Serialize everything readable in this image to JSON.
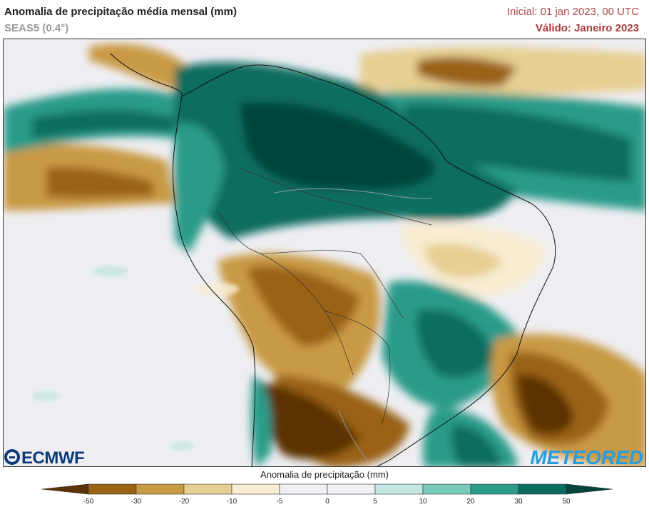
{
  "header": {
    "title": "Anomalia de precipitação média mensal (mm)",
    "subtitle": "SEAS5 (0.4°)",
    "initial": "Inicial: 01 jan 2023, 00 UTC",
    "valid": "Válido: Janeiro 2023"
  },
  "logos": {
    "left": "ECMWF",
    "right": "METEORED"
  },
  "colorbar": {
    "title": "Anomalia de precipitação (mm)",
    "ticks": [
      "-50",
      "-30",
      "-20",
      "-10",
      "-5",
      "0",
      "5",
      "10",
      "20",
      "30",
      "50"
    ],
    "colors": [
      "#5c3306",
      "#9a6215",
      "#c99a44",
      "#e6cf92",
      "#f8ecd2",
      "#f0f0f4",
      "#f0f0f4",
      "#c4e6e0",
      "#79c9bc",
      "#2c9b8a",
      "#0b6d5f",
      "#03443b"
    ]
  }
}
